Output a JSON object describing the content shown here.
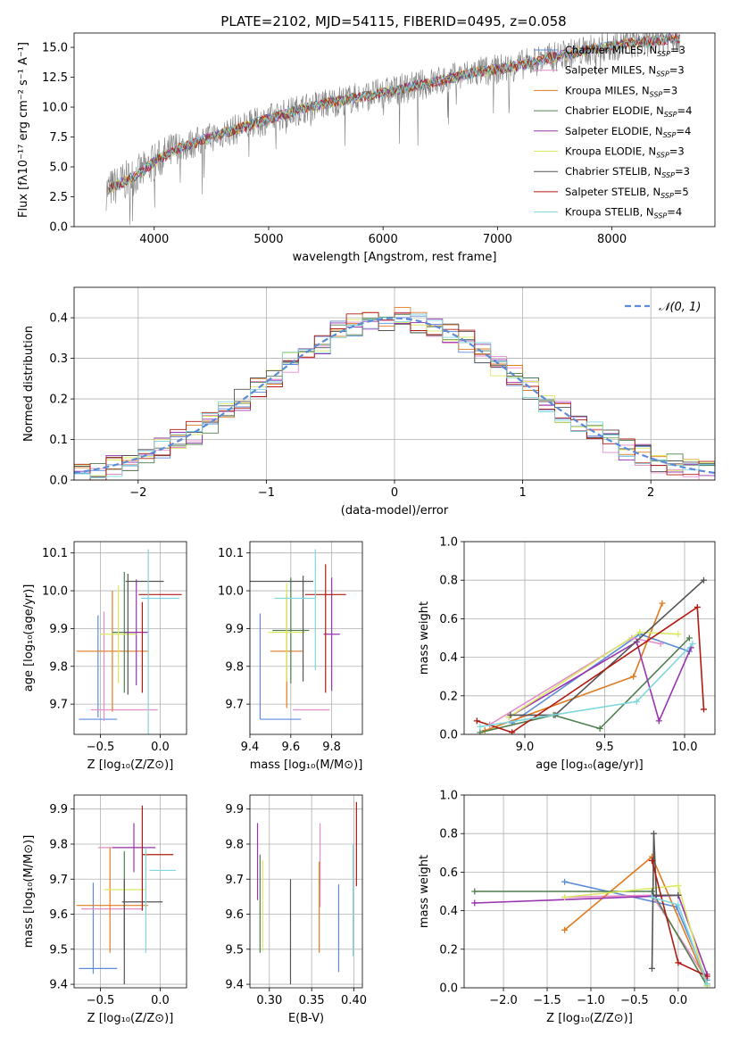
{
  "figure_title": "PLATE=2102, MJD=54115, FIBERID=0495, z=0.058",
  "colors": {
    "Chabrier MILES": "#5b8bd9",
    "Salpeter MILES": "#e38ec9",
    "Kroupa MILES": "#e07b22",
    "Chabrier ELODIE": "#4f7f4f",
    "Salpeter ELODIE": "#9933b0",
    "Kroupa ELODIE": "#d9e860",
    "Chabrier STELIB": "#555555",
    "Salpeter STELIB": "#b01a10",
    "Kroupa STELIB": "#7fd6dc",
    "normal": "#5b8bd9"
  },
  "chart_data": [
    {
      "id": "spectrum",
      "type": "line",
      "xlabel": "wavelength [Angstrom, rest frame]",
      "ylabel": "Flux [fλ10⁻¹⁷ erg cm⁻² s⁻¹ A⁻¹]",
      "xlim": [
        3300,
        8900
      ],
      "ylim": [
        0,
        16.2
      ],
      "xticks": [
        4000,
        5000,
        6000,
        7000,
        8000
      ],
      "yticks": [
        0.0,
        2.5,
        5.0,
        7.5,
        10.0,
        12.5,
        15.0
      ],
      "grid": false,
      "legend_position": "lower-right",
      "legend": [
        {
          "label": "Chabrier MILES, N",
          "sub": "SSP",
          "eq": "=3"
        },
        {
          "label": "Salpeter MILES, N",
          "sub": "SSP",
          "eq": "=3"
        },
        {
          "label": "Kroupa MILES, N",
          "sub": "SSP",
          "eq": "=3"
        },
        {
          "label": "Chabrier ELODIE, N",
          "sub": "SSP",
          "eq": "=4"
        },
        {
          "label": "Salpeter ELODIE, N",
          "sub": "SSP",
          "eq": "=4"
        },
        {
          "label": "Kroupa ELODIE, N",
          "sub": "SSP",
          "eq": "=3"
        },
        {
          "label": "Chabrier STELIB, N",
          "sub": "SSP",
          "eq": "=3"
        },
        {
          "label": "Salpeter STELIB, N",
          "sub": "SSP",
          "eq": "=5"
        },
        {
          "label": "Kroupa STELIB, N",
          "sub": "SSP",
          "eq": "=4"
        }
      ],
      "continuum": {
        "x": [
          3580,
          3700,
          3900,
          4000,
          4200,
          4500,
          4800,
          5000,
          5300,
          5600,
          5900,
          6200,
          6500,
          6800,
          7100,
          7400,
          7700,
          8000,
          8300,
          8600
        ],
        "y": [
          3.0,
          3.6,
          4.6,
          5.4,
          6.5,
          7.5,
          8.4,
          9.0,
          9.9,
          10.5,
          11.0,
          11.6,
          12.2,
          12.9,
          13.3,
          14.0,
          14.6,
          15.1,
          15.5,
          15.8
        ]
      }
    },
    {
      "id": "residuals",
      "type": "histogram",
      "xlabel": "(data-model)/error",
      "ylabel": "Normed distribution",
      "xlim": [
        -2.5,
        2.5
      ],
      "ylim": [
        0,
        0.475
      ],
      "xticks": [
        -2,
        -1,
        0,
        1,
        2
      ],
      "yticks": [
        0.0,
        0.1,
        0.2,
        0.3,
        0.4
      ],
      "grid": true,
      "legend_position": "top-right",
      "legend_label": "𝒩(0, 1)",
      "bin_width": 0.125
    },
    {
      "id": "age-vs-Z",
      "type": "errorbar",
      "xlabel": "Z [log₁₀(Z/Z⊙)]",
      "ylabel": "age  [log₁₀(age/yr)]",
      "xlim": [
        -0.72,
        0.22
      ],
      "ylim": [
        9.62,
        10.13
      ],
      "xticks": [
        -0.5,
        0.0
      ],
      "yticks": [
        9.7,
        9.8,
        9.9,
        10.0,
        10.1
      ],
      "grid": true,
      "points": [
        {
          "model": "Chabrier MILES",
          "x": -0.52,
          "xerr": 0.16,
          "y": 9.66,
          "yerr": 0.0
        },
        {
          "model": "Chabrier MILES",
          "x": -0.52,
          "xerr": 0.0,
          "y": 9.8,
          "yerr": 0.135
        },
        {
          "model": "Salpeter MILES",
          "x": -0.47,
          "xerr": 0.0,
          "y": 9.8,
          "yerr": 0.145
        },
        {
          "model": "Salpeter MILES",
          "x": -0.3,
          "xerr": 0.28,
          "y": 9.685,
          "yerr": 0.0
        },
        {
          "model": "Kroupa MILES",
          "x": -0.4,
          "xerr": 0.3,
          "y": 9.84,
          "yerr": 0.16
        },
        {
          "model": "Chabrier ELODIE",
          "x": -0.3,
          "xerr": 0.1,
          "y": 9.89,
          "yerr": 0.16
        },
        {
          "model": "Salpeter ELODIE",
          "x": -0.2,
          "xerr": 0.1,
          "y": 9.89,
          "yerr": 0.14
        },
        {
          "model": "Kroupa ELODIE",
          "x": -0.35,
          "xerr": 0.15,
          "y": 9.885,
          "yerr": 0.13
        },
        {
          "model": "Chabrier STELIB",
          "x": -0.13,
          "xerr": 0.16,
          "y": 10.025,
          "yerr": 0.0
        },
        {
          "model": "Chabrier STELIB",
          "x": -0.27,
          "xerr": 0.0,
          "y": 9.885,
          "yerr": 0.16
        },
        {
          "model": "Salpeter STELIB",
          "x": 0.0,
          "xerr": 0.18,
          "y": 9.99,
          "yerr": 0.0
        },
        {
          "model": "Salpeter STELIB",
          "x": -0.15,
          "xerr": 0.0,
          "y": 9.85,
          "yerr": 0.12
        },
        {
          "model": "Kroupa STELIB",
          "x": 0.0,
          "xerr": 0.16,
          "y": 9.98,
          "yerr": 0.0
        },
        {
          "model": "Kroupa STELIB",
          "x": -0.1,
          "xerr": 0.0,
          "y": 9.86,
          "yerr": 0.25
        }
      ]
    },
    {
      "id": "age-vs-mass",
      "type": "errorbar",
      "xlabel": "mass [log₁₀(M/M⊙)]",
      "ylabel": "",
      "xlim": [
        9.4,
        9.95
      ],
      "ylim": [
        9.62,
        10.13
      ],
      "xticks": [
        9.4,
        9.6,
        9.8
      ],
      "yticks": [
        9.7,
        9.8,
        9.9,
        10.0,
        10.1
      ],
      "grid": true,
      "points": [
        {
          "model": "Chabrier MILES",
          "x": 9.55,
          "xerr": 0.1,
          "y": 9.66,
          "yerr": 0.0
        },
        {
          "model": "Chabrier MILES",
          "x": 9.45,
          "xerr": 0.0,
          "y": 9.8,
          "yerr": 0.14
        },
        {
          "model": "Salpeter MILES",
          "x": 9.7,
          "xerr": 0.09,
          "y": 9.685,
          "yerr": 0.0
        },
        {
          "model": "Kroupa MILES",
          "x": 9.58,
          "xerr": 0.08,
          "y": 9.84,
          "yerr": 0.15
        },
        {
          "model": "Chabrier ELODIE",
          "x": 9.6,
          "xerr": 0.09,
          "y": 9.895,
          "yerr": 0.14
        },
        {
          "model": "Salpeter ELODIE",
          "x": 9.8,
          "xerr": 0.04,
          "y": 9.885,
          "yerr": 0.15
        },
        {
          "model": "Kroupa ELODIE",
          "x": 9.58,
          "xerr": 0.09,
          "y": 9.89,
          "yerr": 0.13
        },
        {
          "model": "Chabrier STELIB",
          "x": 9.55,
          "xerr": 0.16,
          "y": 10.025,
          "yerr": 0.0
        },
        {
          "model": "Chabrier STELIB",
          "x": 9.66,
          "xerr": 0.0,
          "y": 9.9,
          "yerr": 0.14
        },
        {
          "model": "Salpeter STELIB",
          "x": 9.77,
          "xerr": 0.1,
          "y": 9.99,
          "yerr": 0.0
        },
        {
          "model": "Salpeter STELIB",
          "x": 9.77,
          "xerr": 0.0,
          "y": 9.9,
          "yerr": 0.17
        },
        {
          "model": "Kroupa STELIB",
          "x": 9.62,
          "xerr": 0.1,
          "y": 9.98,
          "yerr": 0.0
        },
        {
          "model": "Kroupa STELIB",
          "x": 9.72,
          "xerr": 0.0,
          "y": 9.95,
          "yerr": 0.16
        }
      ]
    },
    {
      "id": "weight-vs-age",
      "type": "line",
      "xlabel": "age  [log₁₀(age/yr)]",
      "ylabel": "mass weight",
      "xlim": [
        8.62,
        10.19
      ],
      "ylim": [
        0,
        1.0
      ],
      "xticks": [
        9.0,
        9.5,
        10.0
      ],
      "yticks": [
        0.0,
        0.2,
        0.4,
        0.6,
        0.8,
        1.0
      ],
      "grid": true,
      "series": [
        {
          "model": "Chabrier MILES",
          "x": [
            8.92,
            9.72,
            10.03
          ],
          "y": [
            0.06,
            0.52,
            0.43
          ]
        },
        {
          "model": "Salpeter MILES",
          "x": [
            8.78,
            9.67,
            9.85
          ],
          "y": [
            0.05,
            0.5,
            0.47
          ]
        },
        {
          "model": "Kroupa MILES",
          "x": [
            8.75,
            9.68,
            9.86
          ],
          "y": [
            0.02,
            0.3,
            0.68
          ]
        },
        {
          "model": "Chabrier ELODIE",
          "x": [
            8.72,
            9.18,
            9.47,
            10.03
          ],
          "y": [
            0.01,
            0.1,
            0.03,
            0.5
          ]
        },
        {
          "model": "Salpeter ELODIE",
          "x": [
            8.9,
            9.7,
            9.84,
            10.04
          ],
          "y": [
            0.09,
            0.48,
            0.07,
            0.45
          ]
        },
        {
          "model": "Kroupa ELODIE",
          "x": [
            8.9,
            9.72,
            9.96
          ],
          "y": [
            0.09,
            0.53,
            0.52
          ]
        },
        {
          "model": "Chabrier STELIB",
          "x": [
            8.91,
            9.19,
            10.12
          ],
          "y": [
            0.1,
            0.1,
            0.8
          ]
        },
        {
          "model": "Salpeter STELIB",
          "x": [
            8.7,
            8.92,
            10.08,
            10.12
          ],
          "y": [
            0.07,
            0.01,
            0.66,
            0.13
          ]
        },
        {
          "model": "Kroupa STELIB",
          "x": [
            8.72,
            9.7,
            10.05
          ],
          "y": [
            0.04,
            0.17,
            0.47
          ]
        }
      ]
    },
    {
      "id": "mass-vs-Z",
      "type": "errorbar",
      "xlabel": "Z [log₁₀(Z/Z⊙)]",
      "ylabel": "mass [log₁₀(M/M⊙)]",
      "xlim": [
        -0.72,
        0.22
      ],
      "ylim": [
        9.39,
        9.94
      ],
      "xticks": [
        -0.5,
        0.0
      ],
      "yticks": [
        9.4,
        9.5,
        9.6,
        9.7,
        9.8,
        9.9
      ],
      "grid": true,
      "points": [
        {
          "model": "Chabrier MILES",
          "x": -0.52,
          "xerr": 0.16,
          "y": 9.445,
          "yerr": 0.0
        },
        {
          "model": "Chabrier MILES",
          "x": -0.56,
          "xerr": 0.0,
          "y": 9.56,
          "yerr": 0.13
        },
        {
          "model": "Salpeter MILES",
          "x": -0.33,
          "xerr": 0.19,
          "y": 9.79,
          "yerr": 0.0
        },
        {
          "model": "Salpeter MILES",
          "x": -0.4,
          "xerr": 0.26,
          "y": 9.615,
          "yerr": 0.0
        },
        {
          "model": "Kroupa MILES",
          "x": -0.4,
          "xerr": 0.3,
          "y": 9.625,
          "yerr": 0.0
        },
        {
          "model": "Kroupa MILES",
          "x": -0.42,
          "xerr": 0.0,
          "y": 9.64,
          "yerr": 0.15
        },
        {
          "model": "Chabrier ELODIE",
          "x": -0.3,
          "xerr": 0.0,
          "y": 9.64,
          "yerr": 0.14
        },
        {
          "model": "Salpeter ELODIE",
          "x": -0.22,
          "xerr": 0.18,
          "y": 9.79,
          "yerr": 0.07
        },
        {
          "model": "Kroupa ELODIE",
          "x": -0.3,
          "xerr": 0.17,
          "y": 9.67,
          "yerr": 0.0
        },
        {
          "model": "Chabrier STELIB",
          "x": -0.15,
          "xerr": 0.17,
          "y": 9.635,
          "yerr": 0.0
        },
        {
          "model": "Chabrier STELIB",
          "x": -0.3,
          "xerr": 0.0,
          "y": 9.55,
          "yerr": 0.15
        },
        {
          "model": "Salpeter STELIB",
          "x": -0.02,
          "xerr": 0.13,
          "y": 9.77,
          "yerr": 0.0
        },
        {
          "model": "Salpeter STELIB",
          "x": -0.15,
          "xerr": 0.0,
          "y": 9.76,
          "yerr": 0.15
        },
        {
          "model": "Kroupa STELIB",
          "x": 0.02,
          "xerr": 0.11,
          "y": 9.725,
          "yerr": 0.0
        },
        {
          "model": "Kroupa STELIB",
          "x": -0.12,
          "xerr": 0.0,
          "y": 9.64,
          "yerr": 0.15
        }
      ]
    },
    {
      "id": "mass-vs-EBV",
      "type": "errorbar",
      "xlabel": "E(B-V)",
      "ylabel": "",
      "xlim": [
        0.277,
        0.41
      ],
      "ylim": [
        9.39,
        9.94
      ],
      "xticks": [
        0.3,
        0.35,
        0.4
      ],
      "yticks": [
        9.4,
        9.5,
        9.6,
        9.7,
        9.8,
        9.9
      ],
      "grid": true,
      "points": [
        {
          "model": "Chabrier MILES",
          "x": 0.382,
          "xerr": 0.0,
          "y": 9.56,
          "yerr": 0.125
        },
        {
          "model": "Salpeter MILES",
          "x": 0.36,
          "xerr": 0.0,
          "y": 9.74,
          "yerr": 0.12
        },
        {
          "model": "Kroupa MILES",
          "x": 0.359,
          "xerr": 0.0,
          "y": 9.62,
          "yerr": 0.13
        },
        {
          "model": "Chabrier ELODIE",
          "x": 0.289,
          "xerr": 0.0,
          "y": 9.63,
          "yerr": 0.14
        },
        {
          "model": "Salpeter ELODIE",
          "x": 0.286,
          "xerr": 0.0,
          "y": 9.75,
          "yerr": 0.11
        },
        {
          "model": "Kroupa ELODIE",
          "x": 0.292,
          "xerr": 0.0,
          "y": 9.625,
          "yerr": 0.13
        },
        {
          "model": "Chabrier STELIB",
          "x": 0.325,
          "xerr": 0.0,
          "y": 9.55,
          "yerr": 0.15
        },
        {
          "model": "Salpeter STELIB",
          "x": 0.403,
          "xerr": 0.0,
          "y": 9.8,
          "yerr": 0.12
        },
        {
          "model": "Kroupa STELIB",
          "x": 0.399,
          "xerr": 0.0,
          "y": 9.64,
          "yerr": 0.16
        }
      ]
    },
    {
      "id": "weight-vs-Z",
      "type": "line",
      "xlabel": "Z [log₁₀(Z/Z⊙)]",
      "ylabel": "mass weight",
      "xlim": [
        -2.45,
        0.42
      ],
      "ylim": [
        0,
        1.0
      ],
      "xticks": [
        -2.0,
        -1.5,
        -1.0,
        -0.5,
        0.0
      ],
      "yticks": [
        0.0,
        0.2,
        0.4,
        0.6,
        0.8,
        1.0
      ],
      "grid": true,
      "series": [
        {
          "model": "Chabrier MILES",
          "x": [
            -1.3,
            -0.02,
            0.33
          ],
          "y": [
            0.55,
            0.42,
            0.04
          ]
        },
        {
          "model": "Salpeter MILES",
          "x": [
            -1.3,
            -0.3,
            0.32
          ],
          "y": [
            0.47,
            0.48,
            0.05
          ]
        },
        {
          "model": "Kroupa MILES",
          "x": [
            -1.3,
            -0.3,
            0.33
          ],
          "y": [
            0.3,
            0.68,
            0.02
          ]
        },
        {
          "model": "Chabrier ELODIE",
          "x": [
            -2.33,
            -0.3,
            0.33
          ],
          "y": [
            0.5,
            0.5,
            0.01
          ]
        },
        {
          "model": "Salpeter ELODIE",
          "x": [
            -2.33,
            0.0,
            0.33
          ],
          "y": [
            0.44,
            0.48,
            0.07
          ]
        },
        {
          "model": "Kroupa ELODIE",
          "x": [
            -1.3,
            0.0,
            0.33
          ],
          "y": [
            0.47,
            0.53,
            0.01
          ]
        },
        {
          "model": "Chabrier STELIB",
          "x": [
            -0.3,
            -0.28,
            -0.25,
            0.0
          ],
          "y": [
            0.1,
            0.8,
            0.48,
            0.48
          ]
        },
        {
          "model": "Salpeter STELIB",
          "x": [
            -0.3,
            0.0,
            0.33
          ],
          "y": [
            0.66,
            0.13,
            0.06
          ]
        },
        {
          "model": "Kroupa STELIB",
          "x": [
            -0.3,
            0.0,
            0.33
          ],
          "y": [
            0.47,
            0.43,
            0.02
          ]
        }
      ]
    }
  ]
}
